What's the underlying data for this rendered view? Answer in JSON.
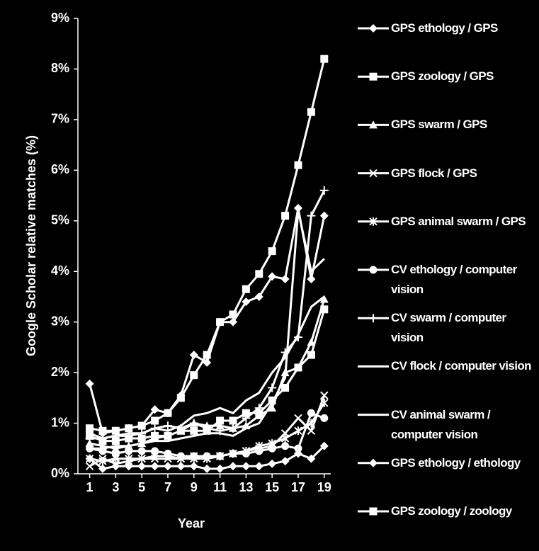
{
  "chart_data": {
    "type": "line",
    "xlabel": "Year",
    "ylabel": "Google Scholar relative matches (%)",
    "x": [
      1,
      2,
      3,
      4,
      5,
      6,
      7,
      8,
      9,
      10,
      11,
      12,
      13,
      14,
      15,
      16,
      17,
      18,
      19
    ],
    "xlim": [
      0.1,
      19.5
    ],
    "xticks": [
      1,
      3,
      5,
      7,
      9,
      11,
      13,
      15,
      17,
      19
    ],
    "ylim": [
      0,
      9
    ],
    "yticks": [
      {
        "value": 0,
        "label": "0%"
      },
      {
        "value": 1,
        "label": "1%"
      },
      {
        "value": 2,
        "label": "2%"
      },
      {
        "value": 3,
        "label": "3%"
      },
      {
        "value": 4,
        "label": "4%"
      },
      {
        "value": 5,
        "label": "5%"
      },
      {
        "value": 6,
        "label": "6%"
      },
      {
        "value": 7,
        "label": "7%"
      },
      {
        "value": 8,
        "label": "8%"
      },
      {
        "value": 9,
        "label": "9%"
      }
    ],
    "series": [
      {
        "name": "GPS ethology / GPS",
        "color": "#ffffff",
        "marker": "diamond",
        "values": [
          1.78,
          0.8,
          0.85,
          0.9,
          0.95,
          1.27,
          1.2,
          1.55,
          2.35,
          2.2,
          3.0,
          3.0,
          3.4,
          3.5,
          3.9,
          3.85,
          5.25,
          3.85,
          5.1
        ]
      },
      {
        "name": "GPS zoology / GPS",
        "color": "#ffffff",
        "marker": "square",
        "values": [
          0.9,
          0.85,
          0.85,
          0.9,
          0.95,
          1.05,
          1.2,
          1.5,
          1.95,
          2.35,
          3.0,
          3.15,
          3.65,
          3.95,
          4.4,
          5.1,
          6.1,
          7.15,
          8.2
        ]
      },
      {
        "name": "GPS swarm / GPS",
        "color": "#ffffff",
        "marker": "triangle",
        "values": [
          0.6,
          0.55,
          0.5,
          0.55,
          0.6,
          0.7,
          0.75,
          0.85,
          1.0,
          0.95,
          0.95,
          0.9,
          0.95,
          1.15,
          1.3,
          2.0,
          2.1,
          2.6,
          3.45
        ]
      },
      {
        "name": "GPS flock / GPS",
        "color": "#ffffff",
        "marker": "x",
        "values": [
          0.15,
          0.3,
          0.2,
          0.25,
          0.3,
          0.3,
          0.3,
          0.3,
          0.35,
          0.3,
          0.35,
          0.4,
          0.45,
          0.5,
          0.55,
          0.8,
          1.1,
          0.85,
          1.55
        ]
      },
      {
        "name": "GPS animal swarm / GPS",
        "color": "#ffffff",
        "marker": "asterisk",
        "values": [
          0.3,
          0.25,
          0.3,
          0.3,
          0.3,
          0.35,
          0.35,
          0.3,
          0.3,
          0.3,
          0.35,
          0.4,
          0.45,
          0.55,
          0.6,
          0.7,
          0.85,
          1.0,
          1.4
        ]
      },
      {
        "name": "CV ethology / computer vision",
        "color": "#ffffff",
        "marker": "circle",
        "values": [
          0.5,
          0.45,
          0.4,
          0.45,
          0.45,
          0.45,
          0.4,
          0.35,
          0.35,
          0.35,
          0.35,
          0.4,
          0.4,
          0.45,
          0.5,
          0.55,
          0.5,
          1.2,
          1.1
        ]
      },
      {
        "name": "CV swarm / computer vision",
        "color": "#ffffff",
        "marker": "plus",
        "values": [
          0.7,
          0.7,
          0.75,
          0.75,
          0.8,
          0.9,
          0.95,
          0.9,
          1.0,
          0.9,
          0.85,
          0.9,
          1.1,
          1.3,
          1.7,
          2.4,
          2.7,
          5.1,
          5.6
        ]
      },
      {
        "name": "CV flock / computer vision",
        "color": "#ffffff",
        "marker": "none",
        "values": [
          0.8,
          0.7,
          0.75,
          0.8,
          0.8,
          0.9,
          0.85,
          0.95,
          1.15,
          1.2,
          1.3,
          1.2,
          1.45,
          1.6,
          2.0,
          2.3,
          2.75,
          3.3,
          3.5
        ]
      },
      {
        "name": "CV animal swarm / computer vision",
        "color": "#ffffff",
        "marker": "none",
        "values": [
          0.5,
          0.5,
          0.55,
          0.55,
          0.6,
          0.65,
          0.65,
          0.7,
          0.75,
          0.8,
          0.8,
          0.75,
          0.9,
          1.0,
          1.4,
          1.9,
          5.2,
          4.0,
          4.25
        ]
      },
      {
        "name": "GPS ethology / ethology",
        "color": "#ffffff",
        "marker": "diamond",
        "values": [
          0.3,
          0.1,
          0.15,
          0.15,
          0.15,
          0.15,
          0.15,
          0.15,
          0.15,
          0.1,
          0.1,
          0.15,
          0.15,
          0.15,
          0.2,
          0.25,
          0.4,
          0.3,
          0.55
        ]
      },
      {
        "name": "GPS zoology / zoology",
        "color": "#ffffff",
        "marker": "square",
        "values": [
          0.75,
          0.65,
          0.65,
          0.7,
          0.7,
          0.75,
          0.75,
          0.85,
          0.85,
          0.85,
          1.05,
          1.05,
          1.2,
          1.2,
          1.45,
          1.7,
          2.1,
          2.35,
          3.25
        ]
      }
    ]
  }
}
